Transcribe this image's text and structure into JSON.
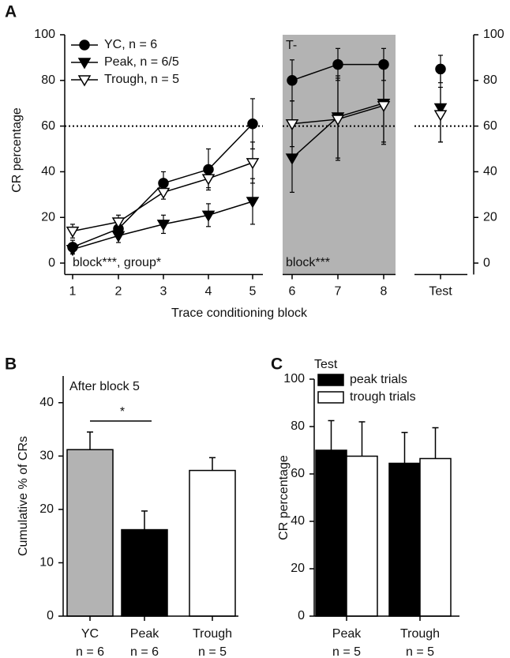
{
  "chart_data": [
    {
      "type": "line",
      "panel": "A",
      "xlabel": "Trace conditioning block",
      "ylabel": "CR percentage",
      "categories": [
        "1",
        "2",
        "3",
        "4",
        "5",
        "6",
        "7",
        "8",
        "Test"
      ],
      "ylim": [
        -5,
        100
      ],
      "yticks": [
        0,
        20,
        40,
        60,
        80,
        100
      ],
      "y2lim": [
        -5,
        100
      ],
      "y2ticks": [
        0,
        20,
        40,
        60,
        80,
        100
      ],
      "hline": 60,
      "shade_label": "T-",
      "annotations": [
        "block***, group*",
        "block***"
      ],
      "series": [
        {
          "name": "YC, n = 6",
          "marker": "circle",
          "color": "#000000",
          "marker_fill": "#000000",
          "values": [
            7,
            15,
            35,
            41,
            61,
            80,
            87,
            87,
            85
          ],
          "errors": [
            3,
            3,
            5,
            9,
            11,
            9,
            7,
            7,
            6
          ]
        },
        {
          "name": "Peak, n = 6/5",
          "marker": "triangle-down",
          "color": "#000000",
          "marker_fill": "#000000",
          "values": [
            6,
            12,
            17,
            21,
            27,
            46,
            64,
            70,
            68
          ],
          "errors": [
            2,
            3,
            4,
            5,
            10,
            15,
            18,
            17,
            15
          ]
        },
        {
          "name": "Trough, n = 5",
          "marker": "triangle-down",
          "color": "#000000",
          "marker_fill": "#ffffff",
          "values": [
            14,
            18,
            31,
            37,
            44,
            61,
            63,
            69,
            65
          ],
          "errors": [
            3,
            3,
            3,
            4,
            9,
            10,
            18,
            17,
            12
          ]
        }
      ]
    },
    {
      "type": "bar",
      "panel": "B",
      "subtitle": "After block 5",
      "ylabel": "Cumulative % of CRs",
      "categories": [
        "YC",
        "Peak",
        "Trough"
      ],
      "n_labels": [
        "n = 6",
        "n = 6",
        "n = 5"
      ],
      "values": [
        31.2,
        16.2,
        27.3
      ],
      "errors": [
        3.3,
        3.5,
        2.4
      ],
      "colors": [
        "#b3b3b3",
        "#000000",
        "#ffffff"
      ],
      "ylim": [
        0,
        45
      ],
      "yticks": [
        0,
        10,
        20,
        30,
        40
      ],
      "significance": "*"
    },
    {
      "type": "grouped_bar",
      "panel": "C",
      "title": "Test",
      "ylabel": "CR percentage",
      "categories": [
        "Peak",
        "Trough"
      ],
      "n_labels": [
        "n = 5",
        "n = 5"
      ],
      "ylim": [
        0,
        100
      ],
      "yticks": [
        0,
        20,
        40,
        60,
        80,
        100
      ],
      "series": [
        {
          "name": "peak trials",
          "color": "#000000",
          "values": [
            70,
            64.5
          ],
          "errors": [
            12.5,
            13
          ]
        },
        {
          "name": "trough trials",
          "color": "#ffffff",
          "values": [
            67.5,
            66.5
          ],
          "errors": [
            14.5,
            13
          ]
        }
      ]
    }
  ]
}
